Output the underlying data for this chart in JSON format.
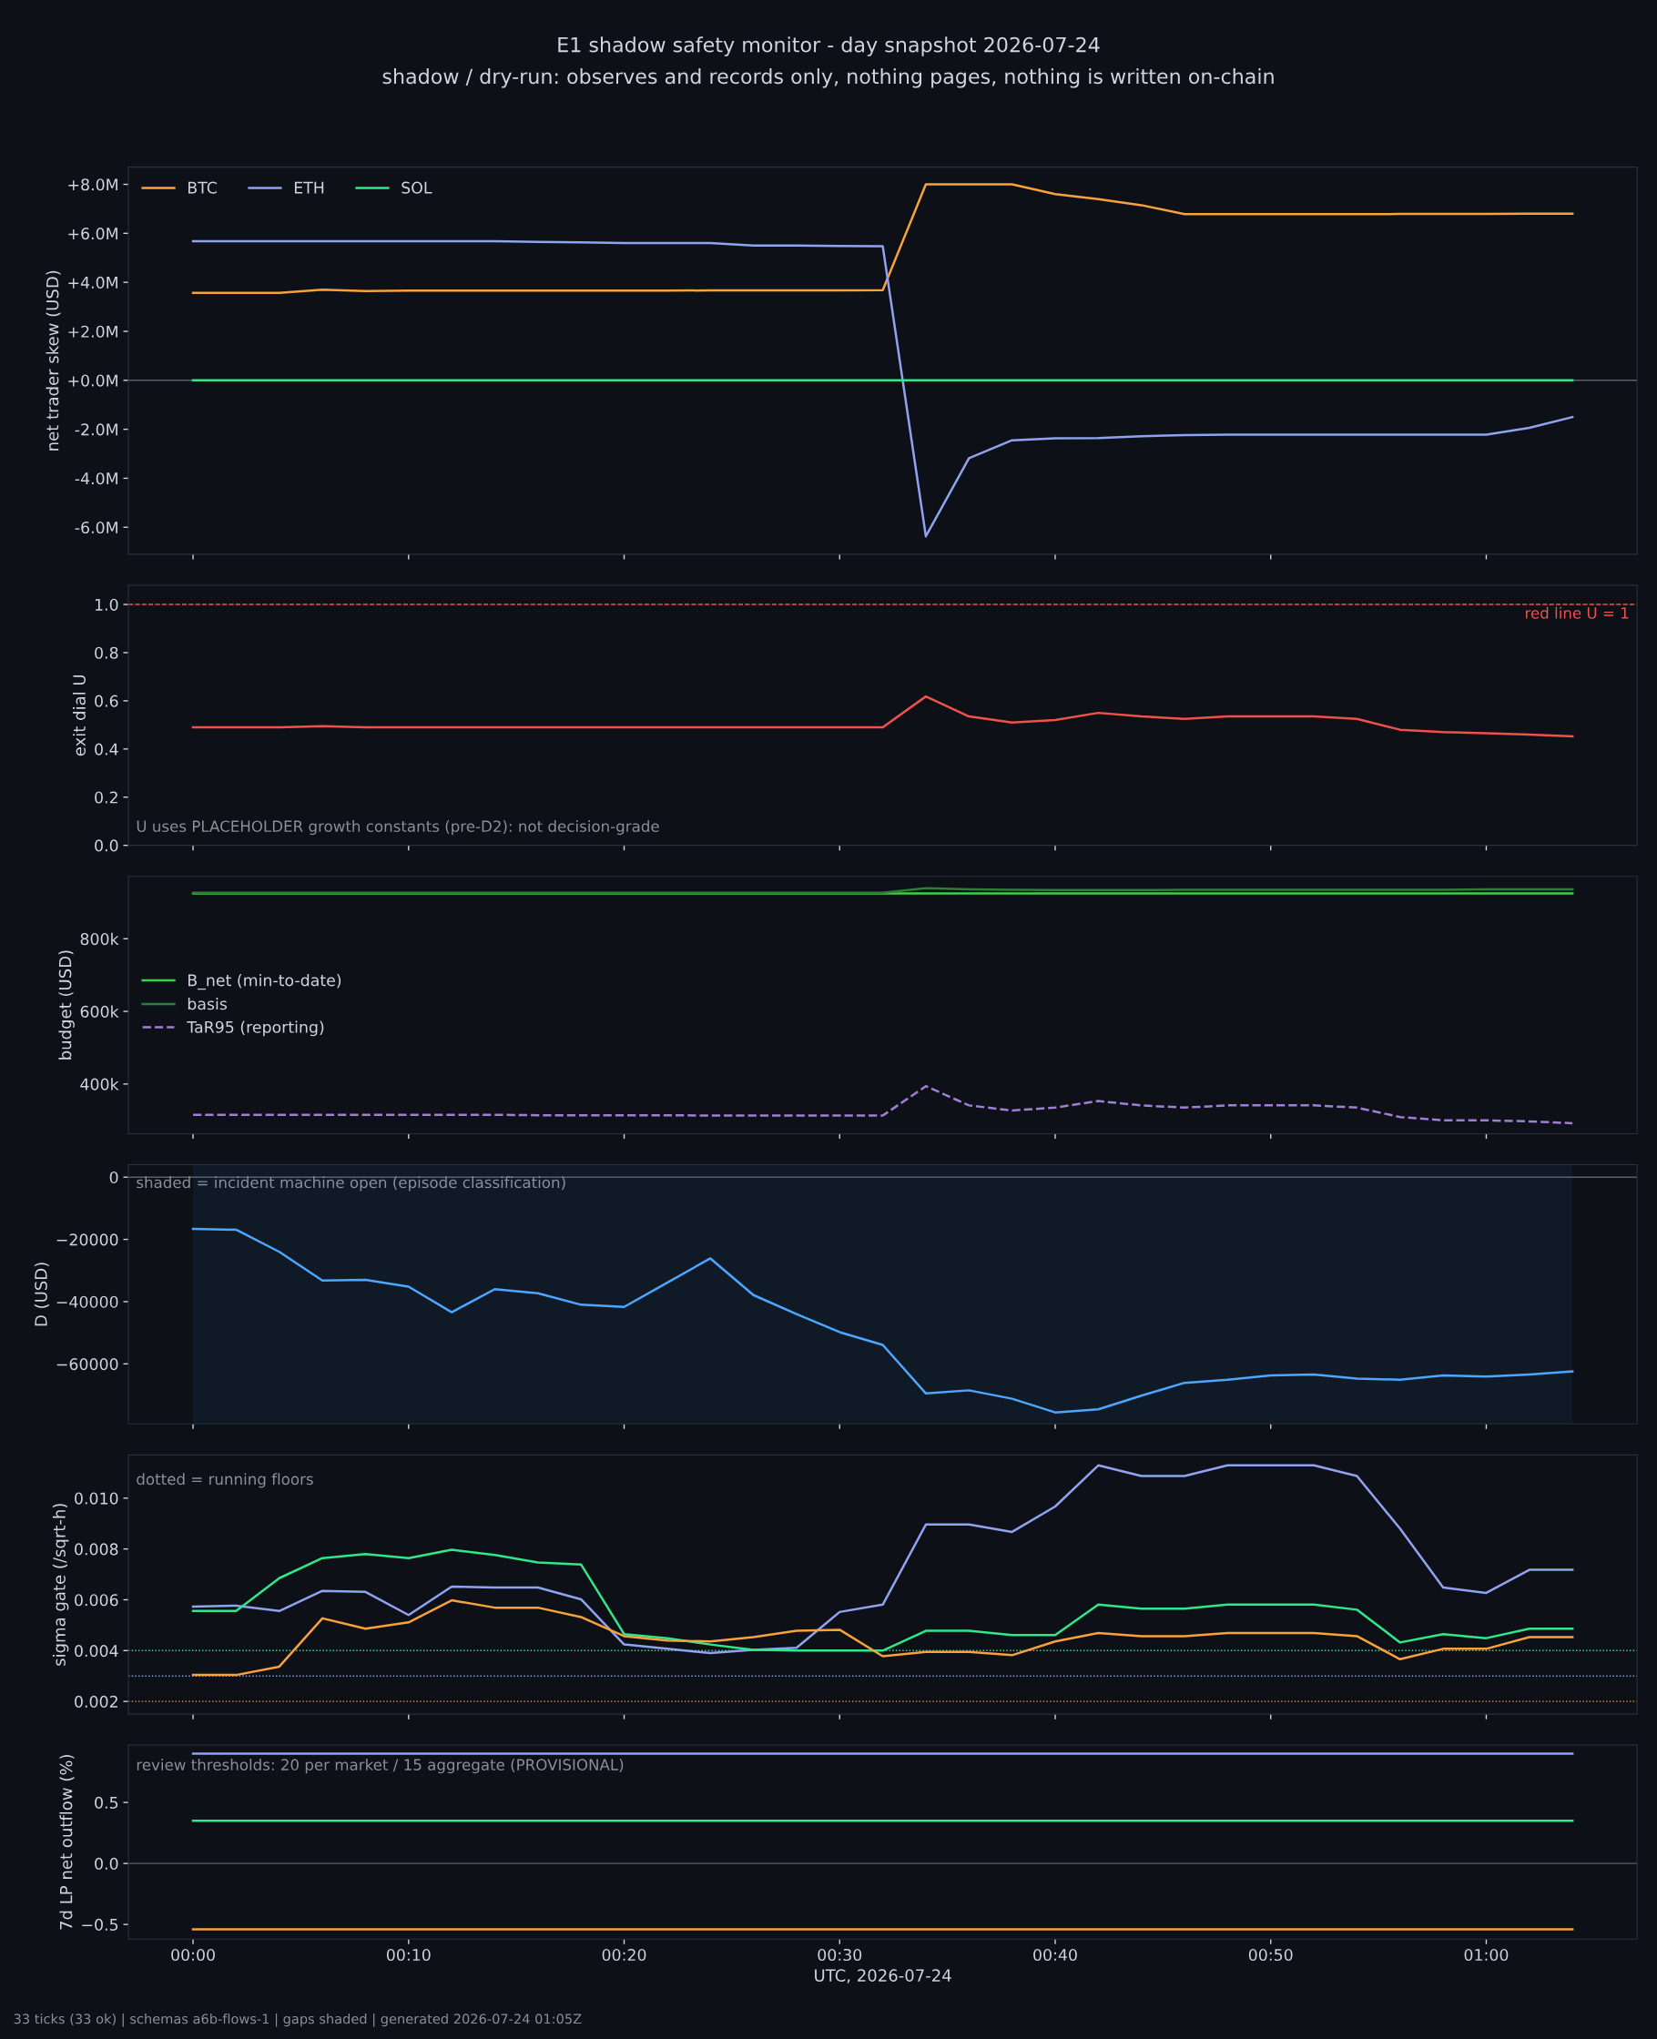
{
  "chart_data": [
    {
      "type": "line",
      "title": "E1 shadow safety monitor - day snapshot 2026-07-24",
      "subtitle": "shadow / dry-run: observes and records only, nothing pages, nothing is written on-chain",
      "ylabel": "net trader skew (USD)",
      "x": [
        "2026-07-24T00:00",
        "2026-07-24T00:02",
        "2026-07-24T00:04",
        "2026-07-24T00:06",
        "2026-07-24T00:08",
        "2026-07-24T00:10",
        "2026-07-24T00:12",
        "2026-07-24T00:14",
        "2026-07-24T00:16",
        "2026-07-24T00:18",
        "2026-07-24T00:20",
        "2026-07-24T00:22",
        "2026-07-24T00:24",
        "2026-07-24T00:26",
        "2026-07-24T00:28",
        "2026-07-24T00:30",
        "2026-07-24T00:32",
        "2026-07-24T00:34",
        "2026-07-24T00:36",
        "2026-07-24T00:38",
        "2026-07-24T00:40",
        "2026-07-24T00:42",
        "2026-07-24T00:44",
        "2026-07-24T00:46",
        "2026-07-24T00:48",
        "2026-07-24T00:50",
        "2026-07-24T00:52",
        "2026-07-24T00:54",
        "2026-07-24T00:56",
        "2026-07-24T00:58",
        "2026-07-24T01:00",
        "2026-07-24T01:02",
        "2026-07-24T01:04"
      ],
      "xlim": [
        "2026-07-23T23:57",
        "2026-07-24T01:07"
      ],
      "xticks": [
        {
          "value": "2026-07-24T00:00",
          "label": null
        },
        {
          "value": "2026-07-24T00:10",
          "label": null
        },
        {
          "value": "2026-07-24T00:20",
          "label": null
        },
        {
          "value": "2026-07-24T00:30",
          "label": null
        },
        {
          "value": "2026-07-24T00:40",
          "label": null
        },
        {
          "value": "2026-07-24T00:50",
          "label": null
        },
        {
          "value": "2026-07-24T01:00",
          "label": null
        }
      ],
      "ylim": [
        -7.1,
        8.7
      ],
      "yticks": [
        {
          "value": -6,
          "label": "-6.0M"
        },
        {
          "value": -4,
          "label": "-4.0M"
        },
        {
          "value": -2,
          "label": "-2.0M"
        },
        {
          "value": 0,
          "label": "+0.0M"
        },
        {
          "value": 2,
          "label": "+2.0M"
        },
        {
          "value": 4,
          "label": "+4.0M"
        },
        {
          "value": 6,
          "label": "+6.0M"
        },
        {
          "value": 8,
          "label": "+8.0M"
        }
      ],
      "series": [
        {
          "name": "BTC",
          "color": "#f7a23b",
          "values": [
            3.57,
            3.57,
            3.57,
            3.7,
            3.64,
            3.66,
            3.66,
            3.66,
            3.66,
            3.66,
            3.66,
            3.66,
            3.67,
            3.67,
            3.67,
            3.67,
            3.68,
            8.0,
            8.0,
            8.0,
            7.6,
            7.4,
            7.15,
            6.78,
            6.78,
            6.78,
            6.78,
            6.78,
            6.79,
            6.79,
            6.79,
            6.8,
            6.8
          ]
        },
        {
          "name": "ETH",
          "color": "#8fa3f0",
          "values": [
            5.68,
            5.68,
            5.68,
            5.68,
            5.68,
            5.68,
            5.68,
            5.68,
            5.65,
            5.63,
            5.6,
            5.6,
            5.6,
            5.5,
            5.5,
            5.48,
            5.47,
            -6.37,
            -3.18,
            -2.45,
            -2.37,
            -2.36,
            -2.28,
            -2.24,
            -2.22,
            -2.22,
            -2.22,
            -2.22,
            -2.22,
            -2.22,
            -2.22,
            -1.94,
            -1.5
          ]
        },
        {
          "name": "SOL",
          "color": "#2ee88a",
          "values": [
            0,
            0,
            0,
            0,
            0,
            0,
            0,
            0,
            0,
            0,
            0,
            0,
            0,
            0,
            0,
            0,
            0,
            0,
            0,
            0,
            0,
            0,
            0,
            0,
            0,
            0,
            0,
            0,
            0,
            0,
            0,
            0,
            0
          ]
        }
      ],
      "ref_lines": [
        {
          "axis": "y",
          "value": 0,
          "color": "#5a5f6a",
          "line_style": "solid"
        }
      ],
      "legend": "top left",
      "grid": false,
      "tick_labels": "y",
      "marker": "none"
    },
    {
      "type": "line",
      "ylabel": "exit dial U",
      "x": [
        "2026-07-24T00:00",
        "2026-07-24T00:02",
        "2026-07-24T00:04",
        "2026-07-24T00:06",
        "2026-07-24T00:08",
        "2026-07-24T00:10",
        "2026-07-24T00:12",
        "2026-07-24T00:14",
        "2026-07-24T00:16",
        "2026-07-24T00:18",
        "2026-07-24T00:20",
        "2026-07-24T00:22",
        "2026-07-24T00:24",
        "2026-07-24T00:26",
        "2026-07-24T00:28",
        "2026-07-24T00:30",
        "2026-07-24T00:32",
        "2026-07-24T00:34",
        "2026-07-24T00:36",
        "2026-07-24T00:38",
        "2026-07-24T00:40",
        "2026-07-24T00:42",
        "2026-07-24T00:44",
        "2026-07-24T00:46",
        "2026-07-24T00:48",
        "2026-07-24T00:50",
        "2026-07-24T00:52",
        "2026-07-24T00:54",
        "2026-07-24T00:56",
        "2026-07-24T00:58",
        "2026-07-24T01:00",
        "2026-07-24T01:02",
        "2026-07-24T01:04"
      ],
      "xlim": [
        "2026-07-23T23:57",
        "2026-07-24T01:07"
      ],
      "xticks": [
        {
          "value": "2026-07-24T00:00",
          "label": null
        },
        {
          "value": "2026-07-24T00:10",
          "label": null
        },
        {
          "value": "2026-07-24T00:20",
          "label": null
        },
        {
          "value": "2026-07-24T00:30",
          "label": null
        },
        {
          "value": "2026-07-24T00:40",
          "label": null
        },
        {
          "value": "2026-07-24T00:50",
          "label": null
        },
        {
          "value": "2026-07-24T01:00",
          "label": null
        }
      ],
      "ylim": [
        0,
        1.08
      ],
      "yticks": [
        {
          "value": 0,
          "label": "0.0"
        },
        {
          "value": 0.2,
          "label": "0.2"
        },
        {
          "value": 0.4,
          "label": "0.4"
        },
        {
          "value": 0.6,
          "label": "0.6"
        },
        {
          "value": 0.8,
          "label": "0.8"
        },
        {
          "value": 1,
          "label": "1.0"
        }
      ],
      "series": [
        {
          "color": "#f0524a",
          "values": [
            0.49,
            0.49,
            0.49,
            0.495,
            0.49,
            0.49,
            0.49,
            0.49,
            0.49,
            0.49,
            0.49,
            0.49,
            0.49,
            0.49,
            0.49,
            0.49,
            0.49,
            0.618,
            0.535,
            0.51,
            0.52,
            0.55,
            0.535,
            0.525,
            0.535,
            0.535,
            0.535,
            0.525,
            0.48,
            0.47,
            0.465,
            0.46,
            0.452
          ]
        }
      ],
      "ref_lines": [
        {
          "axis": "y",
          "value": 1,
          "label": "red line U = 1",
          "color": "#f0524a",
          "line_style": "dashed"
        }
      ],
      "annotations": [
        "U uses PLACEHOLDER growth constants (pre-D2): not decision-grade"
      ],
      "grid": false,
      "tick_labels": "y",
      "marker": "none"
    },
    {
      "type": "line",
      "ylabel": "budget (USD)",
      "x": [
        "2026-07-24T00:00",
        "2026-07-24T00:02",
        "2026-07-24T00:04",
        "2026-07-24T00:06",
        "2026-07-24T00:08",
        "2026-07-24T00:10",
        "2026-07-24T00:12",
        "2026-07-24T00:14",
        "2026-07-24T00:16",
        "2026-07-24T00:18",
        "2026-07-24T00:20",
        "2026-07-24T00:22",
        "2026-07-24T00:24",
        "2026-07-24T00:26",
        "2026-07-24T00:28",
        "2026-07-24T00:30",
        "2026-07-24T00:32",
        "2026-07-24T00:34",
        "2026-07-24T00:36",
        "2026-07-24T00:38",
        "2026-07-24T00:40",
        "2026-07-24T00:42",
        "2026-07-24T00:44",
        "2026-07-24T00:46",
        "2026-07-24T00:48",
        "2026-07-24T00:50",
        "2026-07-24T00:52",
        "2026-07-24T00:54",
        "2026-07-24T00:56",
        "2026-07-24T00:58",
        "2026-07-24T01:00",
        "2026-07-24T01:02",
        "2026-07-24T01:04"
      ],
      "xlim": [
        "2026-07-23T23:57",
        "2026-07-24T01:07"
      ],
      "xticks": [
        {
          "value": "2026-07-24T00:00",
          "label": null
        },
        {
          "value": "2026-07-24T00:10",
          "label": null
        },
        {
          "value": "2026-07-24T00:20",
          "label": null
        },
        {
          "value": "2026-07-24T00:30",
          "label": null
        },
        {
          "value": "2026-07-24T00:40",
          "label": null
        },
        {
          "value": "2026-07-24T00:50",
          "label": null
        },
        {
          "value": "2026-07-24T01:00",
          "label": null
        }
      ],
      "ylim": [
        263,
        972
      ],
      "yticks": [
        {
          "value": 400,
          "label": "400k"
        },
        {
          "value": 600,
          "label": "600k"
        },
        {
          "value": 800,
          "label": "800k"
        }
      ],
      "series": [
        {
          "name": "B_net (min-to-date)",
          "color": "#3ccf4a",
          "values": [
            925,
            925,
            925,
            925,
            925,
            925,
            925,
            925,
            925,
            925,
            925,
            925,
            925,
            925,
            925,
            925,
            925,
            925,
            925,
            925,
            925,
            925,
            925,
            925,
            925,
            925,
            925,
            925,
            925,
            925,
            925,
            925,
            925
          ]
        },
        {
          "name": "basis",
          "color": "#2e7d3a",
          "values": [
            927,
            927,
            927,
            927,
            927,
            927,
            927,
            927,
            927,
            927,
            927,
            927,
            927,
            927,
            927,
            927,
            927,
            939,
            936,
            935,
            934,
            934,
            934,
            935,
            935,
            935,
            935,
            935,
            935,
            935,
            936,
            936,
            936
          ]
        },
        {
          "name": "TaR95 (reporting)",
          "color": "#9f7ed6",
          "line_style": "dashed",
          "values": [
            315,
            315,
            315,
            315,
            315,
            315,
            315,
            315,
            314,
            314,
            314,
            314,
            313,
            313,
            313,
            313,
            313,
            394,
            341,
            327,
            335,
            353,
            341,
            335,
            341,
            341,
            341,
            335,
            309,
            300,
            300,
            297,
            292
          ]
        }
      ],
      "legend": "center left",
      "grid": false,
      "tick_labels": "y",
      "marker": "none"
    },
    {
      "type": "line",
      "ylabel": "D (USD)",
      "x": [
        "2026-07-24T00:00",
        "2026-07-24T00:02",
        "2026-07-24T00:04",
        "2026-07-24T00:06",
        "2026-07-24T00:08",
        "2026-07-24T00:10",
        "2026-07-24T00:12",
        "2026-07-24T00:14",
        "2026-07-24T00:16",
        "2026-07-24T00:18",
        "2026-07-24T00:20",
        "2026-07-24T00:22",
        "2026-07-24T00:24",
        "2026-07-24T00:26",
        "2026-07-24T00:28",
        "2026-07-24T00:30",
        "2026-07-24T00:32",
        "2026-07-24T00:34",
        "2026-07-24T00:36",
        "2026-07-24T00:38",
        "2026-07-24T00:40",
        "2026-07-24T00:42",
        "2026-07-24T00:44",
        "2026-07-24T00:46",
        "2026-07-24T00:48",
        "2026-07-24T00:50",
        "2026-07-24T00:52",
        "2026-07-24T00:54",
        "2026-07-24T00:56",
        "2026-07-24T00:58",
        "2026-07-24T01:00",
        "2026-07-24T01:02",
        "2026-07-24T01:04"
      ],
      "xlim": [
        "2026-07-23T23:57",
        "2026-07-24T01:07"
      ],
      "xticks": [
        {
          "value": "2026-07-24T00:00",
          "label": null
        },
        {
          "value": "2026-07-24T00:10",
          "label": null
        },
        {
          "value": "2026-07-24T00:20",
          "label": null
        },
        {
          "value": "2026-07-24T00:30",
          "label": null
        },
        {
          "value": "2026-07-24T00:40",
          "label": null
        },
        {
          "value": "2026-07-24T00:50",
          "label": null
        },
        {
          "value": "2026-07-24T01:00",
          "label": null
        }
      ],
      "ylim": [
        -79300,
        4000
      ],
      "yticks": [
        {
          "value": -60000,
          "label": "−60000"
        },
        {
          "value": -40000,
          "label": "−40000"
        },
        {
          "value": -20000,
          "label": "−20000"
        },
        {
          "value": 0,
          "label": "0"
        }
      ],
      "series": [
        {
          "color": "#4da6ff",
          "values": [
            -16600,
            -16900,
            -24000,
            -33200,
            -33000,
            -35200,
            -43400,
            -36000,
            -37300,
            -41000,
            -41700,
            -33900,
            -26100,
            -37900,
            -44000,
            -49800,
            -53900,
            -69500,
            -68500,
            -71200,
            -75600,
            -74600,
            -70200,
            -66100,
            -65100,
            -63700,
            -63400,
            -64700,
            -65100,
            -63700,
            -64100,
            -63400,
            -62400
          ]
        }
      ],
      "ref_lines": [
        {
          "axis": "y",
          "value": 0,
          "color": "#5a5f6a",
          "line_style": "solid"
        }
      ],
      "bands": [
        {
          "axis": "x",
          "from": "2026-07-24T00:00",
          "to": "2026-07-24T01:04",
          "label": "shaded = incident machine open (episode classification)",
          "color": "#0f1a26"
        }
      ],
      "grid": false,
      "tick_labels": "y",
      "marker": "none"
    },
    {
      "type": "line",
      "ylabel": "sigma gate (/sqrt-h)",
      "x": [
        "2026-07-24T00:00",
        "2026-07-24T00:02",
        "2026-07-24T00:04",
        "2026-07-24T00:06",
        "2026-07-24T00:08",
        "2026-07-24T00:10",
        "2026-07-24T00:12",
        "2026-07-24T00:14",
        "2026-07-24T00:16",
        "2026-07-24T00:18",
        "2026-07-24T00:20",
        "2026-07-24T00:22",
        "2026-07-24T00:24",
        "2026-07-24T00:26",
        "2026-07-24T00:28",
        "2026-07-24T00:30",
        "2026-07-24T00:32",
        "2026-07-24T00:34",
        "2026-07-24T00:36",
        "2026-07-24T00:38",
        "2026-07-24T00:40",
        "2026-07-24T00:42",
        "2026-07-24T00:44",
        "2026-07-24T00:46",
        "2026-07-24T00:48",
        "2026-07-24T00:50",
        "2026-07-24T00:52",
        "2026-07-24T00:54",
        "2026-07-24T00:56",
        "2026-07-24T00:58",
        "2026-07-24T01:00",
        "2026-07-24T01:02",
        "2026-07-24T01:04"
      ],
      "xlim": [
        "2026-07-23T23:57",
        "2026-07-24T01:07"
      ],
      "xticks": [
        {
          "value": "2026-07-24T00:00",
          "label": null
        },
        {
          "value": "2026-07-24T00:10",
          "label": null
        },
        {
          "value": "2026-07-24T00:20",
          "label": null
        },
        {
          "value": "2026-07-24T00:30",
          "label": null
        },
        {
          "value": "2026-07-24T00:40",
          "label": null
        },
        {
          "value": "2026-07-24T00:50",
          "label": null
        },
        {
          "value": "2026-07-24T01:00",
          "label": null
        }
      ],
      "ylim": [
        0.0015,
        0.0117
      ],
      "yticks": [
        {
          "value": 0.002,
          "label": "0.002"
        },
        {
          "value": 0.004,
          "label": "0.004"
        },
        {
          "value": 0.006,
          "label": "0.006"
        },
        {
          "value": 0.008,
          "label": "0.008"
        },
        {
          "value": 0.01,
          "label": "0.010"
        }
      ],
      "series": [
        {
          "color": "#8fa3f0",
          "values": [
            0.00573,
            0.00577,
            0.00556,
            0.00635,
            0.00631,
            0.0054,
            0.00652,
            0.00648,
            0.00648,
            0.00602,
            0.00424,
            0.00407,
            0.0039,
            0.00403,
            0.00411,
            0.00552,
            0.00581,
            0.00896,
            0.00896,
            0.00867,
            0.00967,
            0.01129,
            0.01087,
            0.01087,
            0.01129,
            0.01129,
            0.01129,
            0.01087,
            0.0088,
            0.00648,
            0.00627,
            0.00718,
            0.00718
          ]
        },
        {
          "color": "#2ee88a",
          "values": [
            0.00556,
            0.00556,
            0.00685,
            0.00764,
            0.0078,
            0.00764,
            0.00797,
            0.00776,
            0.00747,
            0.00739,
            0.00465,
            0.00449,
            0.00424,
            0.00403,
            0.004,
            0.004,
            0.004,
            0.00478,
            0.00478,
            0.00461,
            0.00461,
            0.00581,
            0.00565,
            0.00565,
            0.00581,
            0.00581,
            0.00581,
            0.00561,
            0.00432,
            0.00465,
            0.00449,
            0.00486,
            0.00486
          ]
        },
        {
          "color": "#f7a23b",
          "values": [
            0.00304,
            0.00304,
            0.00337,
            0.00527,
            0.00486,
            0.00511,
            0.00598,
            0.00569,
            0.00569,
            0.00532,
            0.00457,
            0.0044,
            0.00436,
            0.00453,
            0.00478,
            0.00482,
            0.00378,
            0.00395,
            0.00395,
            0.00382,
            0.00436,
            0.00469,
            0.00457,
            0.00457,
            0.00469,
            0.00469,
            0.00469,
            0.00457,
            0.00366,
            0.00407,
            0.00407,
            0.00453,
            0.00453
          ]
        }
      ],
      "ref_lines": [
        {
          "axis": "y",
          "value": 0.004,
          "color": "#2ee88a",
          "line_style": "dotted"
        },
        {
          "axis": "y",
          "value": 0.003,
          "color": "#8fa3f0",
          "line_style": "dotted"
        },
        {
          "axis": "y",
          "value": 0.002,
          "color": "#f7a23b",
          "line_style": "dotted"
        }
      ],
      "annotations": [
        "dotted = running floors"
      ],
      "grid": false,
      "tick_labels": "y",
      "marker": "none"
    },
    {
      "type": "line",
      "ylabel": "7d LP net outflow (%)",
      "xlabel": "UTC, 2026-07-24",
      "x": [
        "2026-07-24T00:00",
        "2026-07-24T00:02",
        "2026-07-24T00:04",
        "2026-07-24T00:06",
        "2026-07-24T00:08",
        "2026-07-24T00:10",
        "2026-07-24T00:12",
        "2026-07-24T00:14",
        "2026-07-24T00:16",
        "2026-07-24T00:18",
        "2026-07-24T00:20",
        "2026-07-24T00:22",
        "2026-07-24T00:24",
        "2026-07-24T00:26",
        "2026-07-24T00:28",
        "2026-07-24T00:30",
        "2026-07-24T00:32",
        "2026-07-24T00:34",
        "2026-07-24T00:36",
        "2026-07-24T00:38",
        "2026-07-24T00:40",
        "2026-07-24T00:42",
        "2026-07-24T00:44",
        "2026-07-24T00:46",
        "2026-07-24T00:48",
        "2026-07-24T00:50",
        "2026-07-24T00:52",
        "2026-07-24T00:54",
        "2026-07-24T00:56",
        "2026-07-24T00:58",
        "2026-07-24T01:00",
        "2026-07-24T01:02",
        "2026-07-24T01:04"
      ],
      "xlim": [
        "2026-07-23T23:57",
        "2026-07-24T01:07"
      ],
      "xticks": [
        {
          "value": "2026-07-24T00:00",
          "label": "00:00"
        },
        {
          "value": "2026-07-24T00:10",
          "label": "00:10"
        },
        {
          "value": "2026-07-24T00:20",
          "label": "00:20"
        },
        {
          "value": "2026-07-24T00:30",
          "label": "00:30"
        },
        {
          "value": "2026-07-24T00:40",
          "label": "00:40"
        },
        {
          "value": "2026-07-24T00:50",
          "label": "00:50"
        },
        {
          "value": "2026-07-24T01:00",
          "label": "01:00"
        }
      ],
      "ylim": [
        -0.62,
        0.97
      ],
      "yticks": [
        {
          "value": -0.5,
          "label": "−0.5"
        },
        {
          "value": 0,
          "label": "0.0"
        },
        {
          "value": 0.5,
          "label": "0.5"
        }
      ],
      "series": [
        {
          "color": "#8fa3f0",
          "values": [
            0.9,
            0.9,
            0.9,
            0.9,
            0.9,
            0.9,
            0.9,
            0.9,
            0.9,
            0.9,
            0.9,
            0.9,
            0.9,
            0.9,
            0.9,
            0.9,
            0.9,
            0.9,
            0.9,
            0.9,
            0.9,
            0.9,
            0.9,
            0.9,
            0.9,
            0.9,
            0.9,
            0.9,
            0.9,
            0.9,
            0.9,
            0.9,
            0.9
          ]
        },
        {
          "color": "#2ee88a",
          "values": [
            0.35,
            0.35,
            0.35,
            0.35,
            0.35,
            0.35,
            0.35,
            0.35,
            0.35,
            0.35,
            0.35,
            0.35,
            0.35,
            0.35,
            0.35,
            0.35,
            0.35,
            0.35,
            0.35,
            0.35,
            0.35,
            0.35,
            0.35,
            0.35,
            0.35,
            0.35,
            0.35,
            0.35,
            0.35,
            0.35,
            0.35,
            0.35,
            0.35
          ]
        },
        {
          "color": "#f7a23b",
          "values": [
            -0.54,
            -0.54,
            -0.54,
            -0.54,
            -0.54,
            -0.54,
            -0.54,
            -0.54,
            -0.54,
            -0.54,
            -0.54,
            -0.54,
            -0.54,
            -0.54,
            -0.54,
            -0.54,
            -0.54,
            -0.54,
            -0.54,
            -0.54,
            -0.54,
            -0.54,
            -0.54,
            -0.54,
            -0.54,
            -0.54,
            -0.54,
            -0.54,
            -0.54,
            -0.54,
            -0.54,
            -0.54,
            -0.54
          ]
        }
      ],
      "ref_lines": [
        {
          "axis": "y",
          "value": 0,
          "color": "#5a5f6a",
          "line_style": "solid"
        }
      ],
      "annotations": [
        "review thresholds: 20 per market / 15 aggregate (PROVISIONAL)",
        "33 ticks (33 ok) | schemas a6b-flows-1 | gaps shaded | generated 2026-07-24 01:05Z"
      ],
      "grid": false,
      "marker": "none"
    }
  ]
}
